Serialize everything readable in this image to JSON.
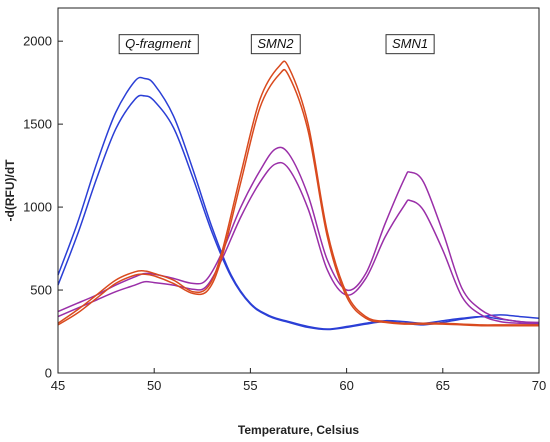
{
  "chart_data": {
    "type": "line",
    "xlabel": "Temperature, Celsius",
    "ylabel": "-d(RFU)/dT",
    "xlim": [
      45,
      70
    ],
    "ylim": [
      0,
      2200
    ],
    "xticks": [
      45,
      50,
      55,
      60,
      65,
      70
    ],
    "yticks": [
      0,
      500,
      1000,
      1500,
      2000
    ],
    "grid": false,
    "annotations": [
      {
        "text": "Q-fragment",
        "x": 50.2,
        "y": 1985
      },
      {
        "text": "SMN2",
        "x": 56.3,
        "y": 1985
      },
      {
        "text": "SMN1",
        "x": 63.3,
        "y": 1985
      }
    ],
    "series": [
      {
        "color": "#2b3fd6",
        "points": [
          [
            45,
            590
          ],
          [
            46,
            900
          ],
          [
            47,
            1260
          ],
          [
            48,
            1570
          ],
          [
            49,
            1760
          ],
          [
            49.5,
            1775
          ],
          [
            50,
            1740
          ],
          [
            51,
            1550
          ],
          [
            52,
            1230
          ],
          [
            53,
            880
          ],
          [
            54,
            590
          ],
          [
            55,
            420
          ],
          [
            56,
            345
          ],
          [
            57,
            310
          ],
          [
            58,
            280
          ],
          [
            59,
            265
          ],
          [
            60,
            280
          ],
          [
            61,
            300
          ],
          [
            62,
            315
          ],
          [
            63,
            310
          ],
          [
            64,
            300
          ],
          [
            65,
            315
          ],
          [
            66,
            330
          ],
          [
            67,
            340
          ],
          [
            68,
            325
          ],
          [
            69,
            310
          ],
          [
            70,
            300
          ]
        ]
      },
      {
        "color": "#2b3fd6",
        "points": [
          [
            45,
            530
          ],
          [
            46,
            830
          ],
          [
            47,
            1170
          ],
          [
            48,
            1470
          ],
          [
            49,
            1650
          ],
          [
            49.5,
            1670
          ],
          [
            50,
            1640
          ],
          [
            51,
            1480
          ],
          [
            52,
            1180
          ],
          [
            53,
            850
          ],
          [
            54,
            580
          ],
          [
            55,
            415
          ],
          [
            56,
            340
          ],
          [
            57,
            305
          ],
          [
            58,
            275
          ],
          [
            59,
            262
          ],
          [
            60,
            275
          ],
          [
            61,
            295
          ],
          [
            62,
            310
          ],
          [
            63,
            300
          ],
          [
            64,
            290
          ],
          [
            65,
            305
          ],
          [
            66,
            325
          ],
          [
            67,
            340
          ],
          [
            68,
            350
          ],
          [
            69,
            340
          ],
          [
            70,
            330
          ]
        ]
      },
      {
        "color": "#9a2fa8",
        "points": [
          [
            45,
            370
          ],
          [
            46,
            420
          ],
          [
            47,
            470
          ],
          [
            48,
            530
          ],
          [
            49,
            580
          ],
          [
            49.5,
            600
          ],
          [
            50,
            595
          ],
          [
            51,
            570
          ],
          [
            52,
            540
          ],
          [
            52.7,
            560
          ],
          [
            53.5,
            720
          ],
          [
            54.5,
            1000
          ],
          [
            55.5,
            1220
          ],
          [
            56.3,
            1350
          ],
          [
            57,
            1320
          ],
          [
            58,
            1070
          ],
          [
            59,
            680
          ],
          [
            60,
            500
          ],
          [
            61,
            600
          ],
          [
            62,
            900
          ],
          [
            63,
            1170
          ],
          [
            63.3,
            1210
          ],
          [
            64,
            1150
          ],
          [
            65,
            850
          ],
          [
            66,
            510
          ],
          [
            67,
            380
          ],
          [
            68,
            330
          ],
          [
            69,
            310
          ],
          [
            70,
            305
          ]
        ]
      },
      {
        "color": "#9a2fa8",
        "points": [
          [
            45,
            340
          ],
          [
            46,
            390
          ],
          [
            47,
            440
          ],
          [
            48,
            490
          ],
          [
            49,
            530
          ],
          [
            49.5,
            550
          ],
          [
            50,
            545
          ],
          [
            51,
            530
          ],
          [
            52,
            505
          ],
          [
            52.7,
            520
          ],
          [
            53.5,
            680
          ],
          [
            54.5,
            940
          ],
          [
            55.5,
            1150
          ],
          [
            56.3,
            1260
          ],
          [
            57,
            1230
          ],
          [
            58,
            990
          ],
          [
            59,
            620
          ],
          [
            60,
            470
          ],
          [
            61,
            570
          ],
          [
            62,
            820
          ],
          [
            63,
            1010
          ],
          [
            63.3,
            1040
          ],
          [
            64,
            980
          ],
          [
            65,
            740
          ],
          [
            66,
            460
          ],
          [
            67,
            350
          ],
          [
            68,
            310
          ],
          [
            69,
            300
          ],
          [
            70,
            295
          ]
        ]
      },
      {
        "color": "#d94a1e",
        "points": [
          [
            45,
            300
          ],
          [
            46,
            380
          ],
          [
            47,
            470
          ],
          [
            48,
            560
          ],
          [
            49,
            610
          ],
          [
            49.5,
            615
          ],
          [
            50,
            600
          ],
          [
            51,
            560
          ],
          [
            52,
            490
          ],
          [
            52.8,
            520
          ],
          [
            53.5,
            720
          ],
          [
            54.5,
            1200
          ],
          [
            55.5,
            1650
          ],
          [
            56.5,
            1850
          ],
          [
            57,
            1840
          ],
          [
            58,
            1500
          ],
          [
            59,
            850
          ],
          [
            60,
            480
          ],
          [
            61,
            340
          ],
          [
            62,
            310
          ],
          [
            63,
            300
          ],
          [
            64,
            300
          ],
          [
            65,
            300
          ],
          [
            66,
            295
          ],
          [
            67,
            290
          ],
          [
            68,
            290
          ],
          [
            69,
            290
          ],
          [
            70,
            290
          ]
        ]
      },
      {
        "color": "#d94a1e",
        "points": [
          [
            45,
            290
          ],
          [
            46,
            360
          ],
          [
            47,
            450
          ],
          [
            48,
            540
          ],
          [
            49,
            590
          ],
          [
            49.5,
            595
          ],
          [
            50,
            585
          ],
          [
            51,
            540
          ],
          [
            52,
            480
          ],
          [
            52.8,
            500
          ],
          [
            53.5,
            690
          ],
          [
            54.5,
            1150
          ],
          [
            55.5,
            1600
          ],
          [
            56.5,
            1800
          ],
          [
            57,
            1790
          ],
          [
            58,
            1460
          ],
          [
            59,
            820
          ],
          [
            60,
            460
          ],
          [
            61,
            330
          ],
          [
            62,
            305
          ],
          [
            63,
            295
          ],
          [
            64,
            295
          ],
          [
            65,
            295
          ],
          [
            66,
            290
          ],
          [
            67,
            285
          ],
          [
            68,
            285
          ],
          [
            69,
            285
          ],
          [
            70,
            285
          ]
        ]
      }
    ]
  }
}
